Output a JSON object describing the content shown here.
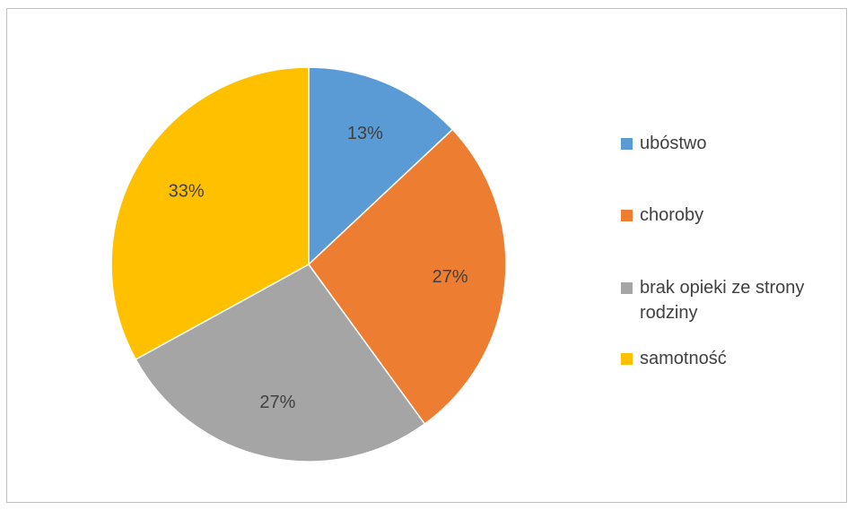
{
  "chart_data": {
    "type": "pie",
    "title": "",
    "slices": [
      {
        "label": "ubóstwo",
        "value": 13,
        "display": "13%",
        "color": "#5b9bd5"
      },
      {
        "label": "choroby",
        "value": 27,
        "display": "27%",
        "color": "#ed7d31"
      },
      {
        "label": "brak opieki ze strony rodziny",
        "value": 27,
        "display": "27%",
        "color": "#a5a5a5"
      },
      {
        "label": "samotność",
        "value": 33,
        "display": "33%",
        "color": "#ffc000"
      }
    ],
    "legend_position": "right"
  }
}
